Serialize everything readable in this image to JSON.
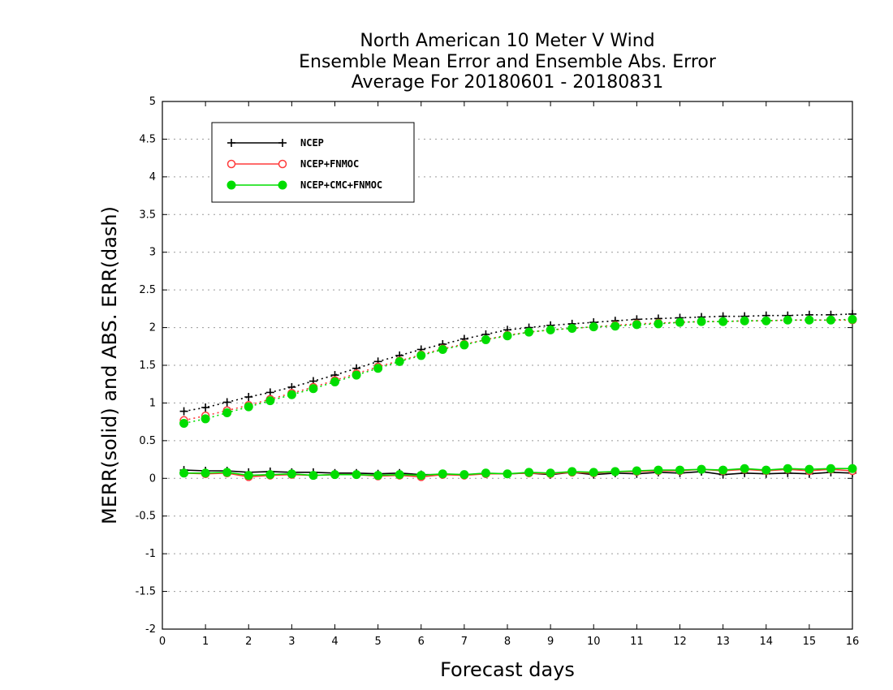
{
  "chart_data": {
    "type": "line",
    "title": [
      "North American 10 Meter V Wind",
      "Ensemble Mean Error and Ensemble Abs. Error",
      "Average For 20180601 - 20180831"
    ],
    "xlabel": "Forecast days",
    "ylabel": "MERR(solid) and ABS. ERR(dash)",
    "xlim": [
      0,
      16
    ],
    "ylim": [
      -2,
      5
    ],
    "xticks": [
      "0",
      "1",
      "2",
      "3",
      "4",
      "5",
      "6",
      "7",
      "8",
      "9",
      "10",
      "11",
      "12",
      "13",
      "14",
      "15",
      "16"
    ],
    "yticks": [
      "-2",
      "-1.5",
      "-1",
      "-0.5",
      "0",
      "0.5",
      "1",
      "1.5",
      "2",
      "2.5",
      "3",
      "3.5",
      "4",
      "4.5",
      "5"
    ],
    "grid": "horizontal dotted",
    "legend_position": "top-left",
    "x": [
      0.5,
      1,
      1.5,
      2,
      2.5,
      3,
      3.5,
      4,
      4.5,
      5,
      5.5,
      6,
      6.5,
      7,
      7.5,
      8,
      8.5,
      9,
      9.5,
      10,
      10.5,
      11,
      11.5,
      12,
      12.5,
      13,
      13.5,
      14,
      14.5,
      15,
      15.5,
      16
    ],
    "series": [
      {
        "name": "NCEP",
        "color": "#000000",
        "marker": "plus",
        "merr": [
          0.11,
          0.1,
          0.1,
          0.08,
          0.09,
          0.08,
          0.08,
          0.07,
          0.07,
          0.06,
          0.07,
          0.05,
          0.05,
          0.05,
          0.06,
          0.06,
          0.07,
          0.05,
          0.08,
          0.05,
          0.07,
          0.06,
          0.08,
          0.07,
          0.09,
          0.05,
          0.07,
          0.06,
          0.07,
          0.06,
          0.08,
          0.07
        ],
        "abs_err": [
          0.89,
          0.94,
          1.01,
          1.08,
          1.14,
          1.21,
          1.29,
          1.37,
          1.46,
          1.55,
          1.63,
          1.71,
          1.78,
          1.85,
          1.91,
          1.97,
          2.0,
          2.03,
          2.05,
          2.07,
          2.09,
          2.11,
          2.12,
          2.13,
          2.14,
          2.15,
          2.15,
          2.16,
          2.16,
          2.17,
          2.17,
          2.18
        ]
      },
      {
        "name": "NCEP+FNMOC",
        "color": "#ff3b3b",
        "marker": "open-circle",
        "merr": [
          0.07,
          0.06,
          0.07,
          0.02,
          0.04,
          0.05,
          0.04,
          0.05,
          0.05,
          0.03,
          0.04,
          0.02,
          0.05,
          0.04,
          0.06,
          0.06,
          0.07,
          0.06,
          0.08,
          0.07,
          0.09,
          0.09,
          0.1,
          0.1,
          0.12,
          0.1,
          0.12,
          0.1,
          0.12,
          0.1,
          0.12,
          0.1
        ],
        "abs_err": [
          0.77,
          0.83,
          0.9,
          0.97,
          1.05,
          1.13,
          1.21,
          1.3,
          1.39,
          1.48,
          1.56,
          1.64,
          1.72,
          1.78,
          1.84,
          1.9,
          1.94,
          1.97,
          1.99,
          2.01,
          2.03,
          2.05,
          2.06,
          2.07,
          2.08,
          2.08,
          2.09,
          2.09,
          2.1,
          2.1,
          2.1,
          2.1
        ]
      },
      {
        "name": "NCEP+CMC+FNMOC",
        "color": "#00dd00",
        "marker": "filled-circle",
        "merr": [
          0.07,
          0.07,
          0.08,
          0.04,
          0.05,
          0.06,
          0.04,
          0.05,
          0.05,
          0.04,
          0.05,
          0.04,
          0.06,
          0.05,
          0.07,
          0.06,
          0.08,
          0.07,
          0.09,
          0.08,
          0.09,
          0.1,
          0.11,
          0.11,
          0.12,
          0.11,
          0.13,
          0.11,
          0.13,
          0.12,
          0.13,
          0.13
        ],
        "abs_err": [
          0.73,
          0.79,
          0.87,
          0.95,
          1.03,
          1.11,
          1.19,
          1.28,
          1.37,
          1.46,
          1.55,
          1.63,
          1.71,
          1.77,
          1.84,
          1.89,
          1.94,
          1.97,
          1.99,
          2.01,
          2.02,
          2.04,
          2.05,
          2.07,
          2.08,
          2.08,
          2.09,
          2.09,
          2.1,
          2.1,
          2.1,
          2.11
        ]
      }
    ]
  }
}
